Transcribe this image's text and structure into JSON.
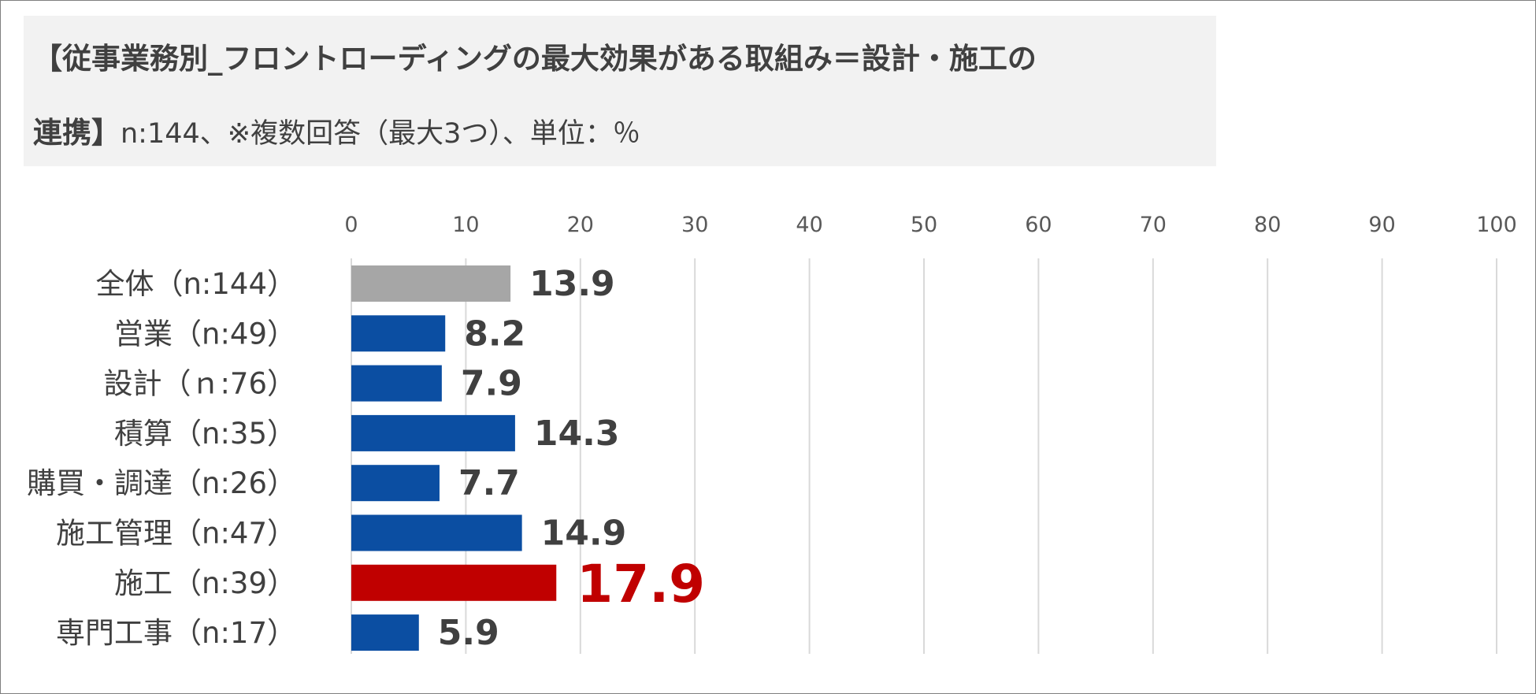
{
  "title": {
    "line1": "【従事業務別_フロントローディングの最大効果がある取組み＝設計・施工の",
    "line2_bold": "連携】",
    "line2_sub": "n:144、※複数回答（最大3つ）、単位：％"
  },
  "colors": {
    "overall": "#a6a6a6",
    "normal": "#0b4ea2",
    "highlight": "#c00000",
    "label": "#404040",
    "highlight_label": "#c00000",
    "grid": "#d9d9d9"
  },
  "chart_data": {
    "type": "bar",
    "orientation": "horizontal",
    "xlim": [
      0,
      100
    ],
    "ticks": [
      "0",
      "10",
      "20",
      "30",
      "40",
      "50",
      "60",
      "70",
      "80",
      "90",
      "100"
    ],
    "grid": true,
    "categories": [
      "全体（n:144）",
      "営業（n:49）",
      "設計（ｎ:76）",
      "積算（n:35）",
      "購買・調達（n:26）",
      "施工管理（n:47）",
      "施工（n:39）",
      "専門工事（n:17）"
    ],
    "values": [
      13.9,
      8.2,
      7.9,
      14.3,
      7.7,
      14.9,
      17.9,
      5.9
    ],
    "value_labels": [
      "13.9",
      "8.2",
      "7.9",
      "14.3",
      "7.7",
      "14.9",
      "17.9",
      "5.9"
    ],
    "bar_roles": [
      "overall",
      "normal",
      "normal",
      "normal",
      "normal",
      "normal",
      "highlight",
      "normal"
    ]
  }
}
